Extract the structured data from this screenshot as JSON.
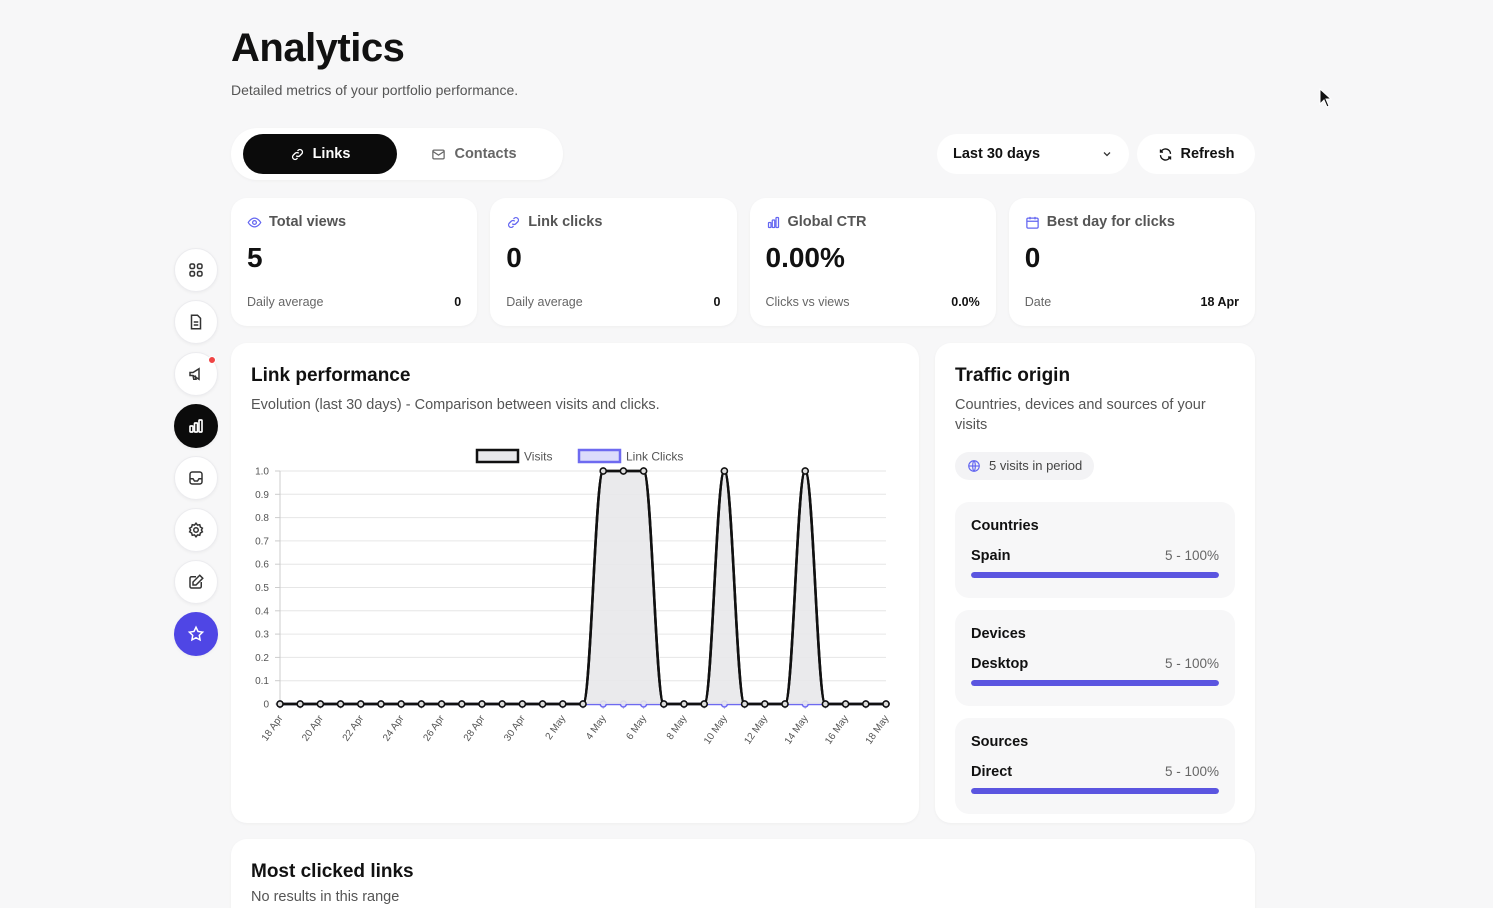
{
  "page": {
    "title": "Analytics",
    "subtitle": "Detailed metrics of your portfolio performance."
  },
  "tabs": [
    {
      "label": "Links",
      "icon": "link-icon",
      "active": true
    },
    {
      "label": "Contacts",
      "icon": "mail-icon",
      "active": false
    }
  ],
  "controls": {
    "range_label": "Last 30 days",
    "refresh_label": "Refresh"
  },
  "sidebar": {
    "items": [
      {
        "name": "dashboard",
        "icon": "grid-icon"
      },
      {
        "name": "documents",
        "icon": "document-icon"
      },
      {
        "name": "announcements",
        "icon": "megaphone-icon",
        "notification": true
      },
      {
        "name": "analytics",
        "icon": "bar-chart-icon",
        "active": true
      },
      {
        "name": "inbox",
        "icon": "inbox-icon"
      },
      {
        "name": "settings",
        "icon": "gear-icon"
      },
      {
        "name": "edit",
        "icon": "edit-icon"
      },
      {
        "name": "favorites",
        "icon": "star-icon",
        "accent": true
      }
    ]
  },
  "stats": [
    {
      "label": "Total views",
      "icon": "eye-icon",
      "value": "5",
      "foot_label": "Daily average",
      "foot_value": "0"
    },
    {
      "label": "Link clicks",
      "icon": "link-icon",
      "value": "0",
      "foot_label": "Daily average",
      "foot_value": "0"
    },
    {
      "label": "Global CTR",
      "icon": "bar-chart-icon",
      "value": "0.00%",
      "foot_label": "Clicks vs views",
      "foot_value": "0.0%"
    },
    {
      "label": "Best day for clicks",
      "icon": "calendar-icon",
      "value": "0",
      "foot_label": "Date",
      "foot_value": "18 Apr"
    }
  ],
  "performance": {
    "title": "Link performance",
    "subtitle": "Evolution (last 30 days) - Comparison between visits and clicks."
  },
  "chart_data": {
    "type": "line",
    "x": [
      "18 Apr",
      "19 Apr",
      "20 Apr",
      "21 Apr",
      "22 Apr",
      "23 Apr",
      "24 Apr",
      "25 Apr",
      "26 Apr",
      "27 Apr",
      "28 Apr",
      "29 Apr",
      "30 Apr",
      "1 May",
      "2 May",
      "3 May",
      "4 May",
      "5 May",
      "6 May",
      "7 May",
      "8 May",
      "9 May",
      "10 May",
      "11 May",
      "12 May",
      "13 May",
      "14 May",
      "15 May",
      "16 May",
      "17 May",
      "18 May"
    ],
    "xticks": [
      "18 Apr",
      "20 Apr",
      "22 Apr",
      "24 Apr",
      "26 Apr",
      "28 Apr",
      "30 Apr",
      "2 May",
      "4 May",
      "6 May",
      "8 May",
      "10 May",
      "12 May",
      "14 May",
      "16 May",
      "18 May"
    ],
    "yticks": [
      "0",
      "0.1",
      "0.2",
      "0.3",
      "0.4",
      "0.5",
      "0.6",
      "0.7",
      "0.8",
      "0.9",
      "1.0"
    ],
    "ylim": [
      0,
      1
    ],
    "series": [
      {
        "name": "Visits",
        "color": "#111111",
        "fill": "#e8e8ea",
        "values": [
          0,
          0,
          0,
          0,
          0,
          0,
          0,
          0,
          0,
          0,
          0,
          0,
          0,
          0,
          0,
          0,
          1,
          1,
          1,
          0,
          0,
          0,
          1,
          0,
          0,
          0,
          1,
          0,
          0,
          0,
          0
        ]
      },
      {
        "name": "Link Clicks",
        "color": "#6e6af0",
        "fill": "#dcdcfb",
        "values": [
          0,
          0,
          0,
          0,
          0,
          0,
          0,
          0,
          0,
          0,
          0,
          0,
          0,
          0,
          0,
          0,
          0,
          0,
          0,
          0,
          0,
          0,
          0,
          0,
          0,
          0,
          0,
          0,
          0,
          0,
          0
        ]
      }
    ],
    "legend": "top-center",
    "grid": true
  },
  "traffic": {
    "title": "Traffic origin",
    "subtitle": "Countries, devices and sources of your visits",
    "visits_pill": "5 visits in period",
    "segments": [
      {
        "title": "Countries",
        "name": "Spain",
        "value": "5 - 100%",
        "fraction": 1.0
      },
      {
        "title": "Devices",
        "name": "Desktop",
        "value": "5 - 100%",
        "fraction": 1.0
      },
      {
        "title": "Sources",
        "name": "Direct",
        "value": "5 - 100%",
        "fraction": 1.0
      }
    ]
  },
  "most_clicked": {
    "title": "Most clicked links",
    "subtitle": "No results in this range"
  }
}
